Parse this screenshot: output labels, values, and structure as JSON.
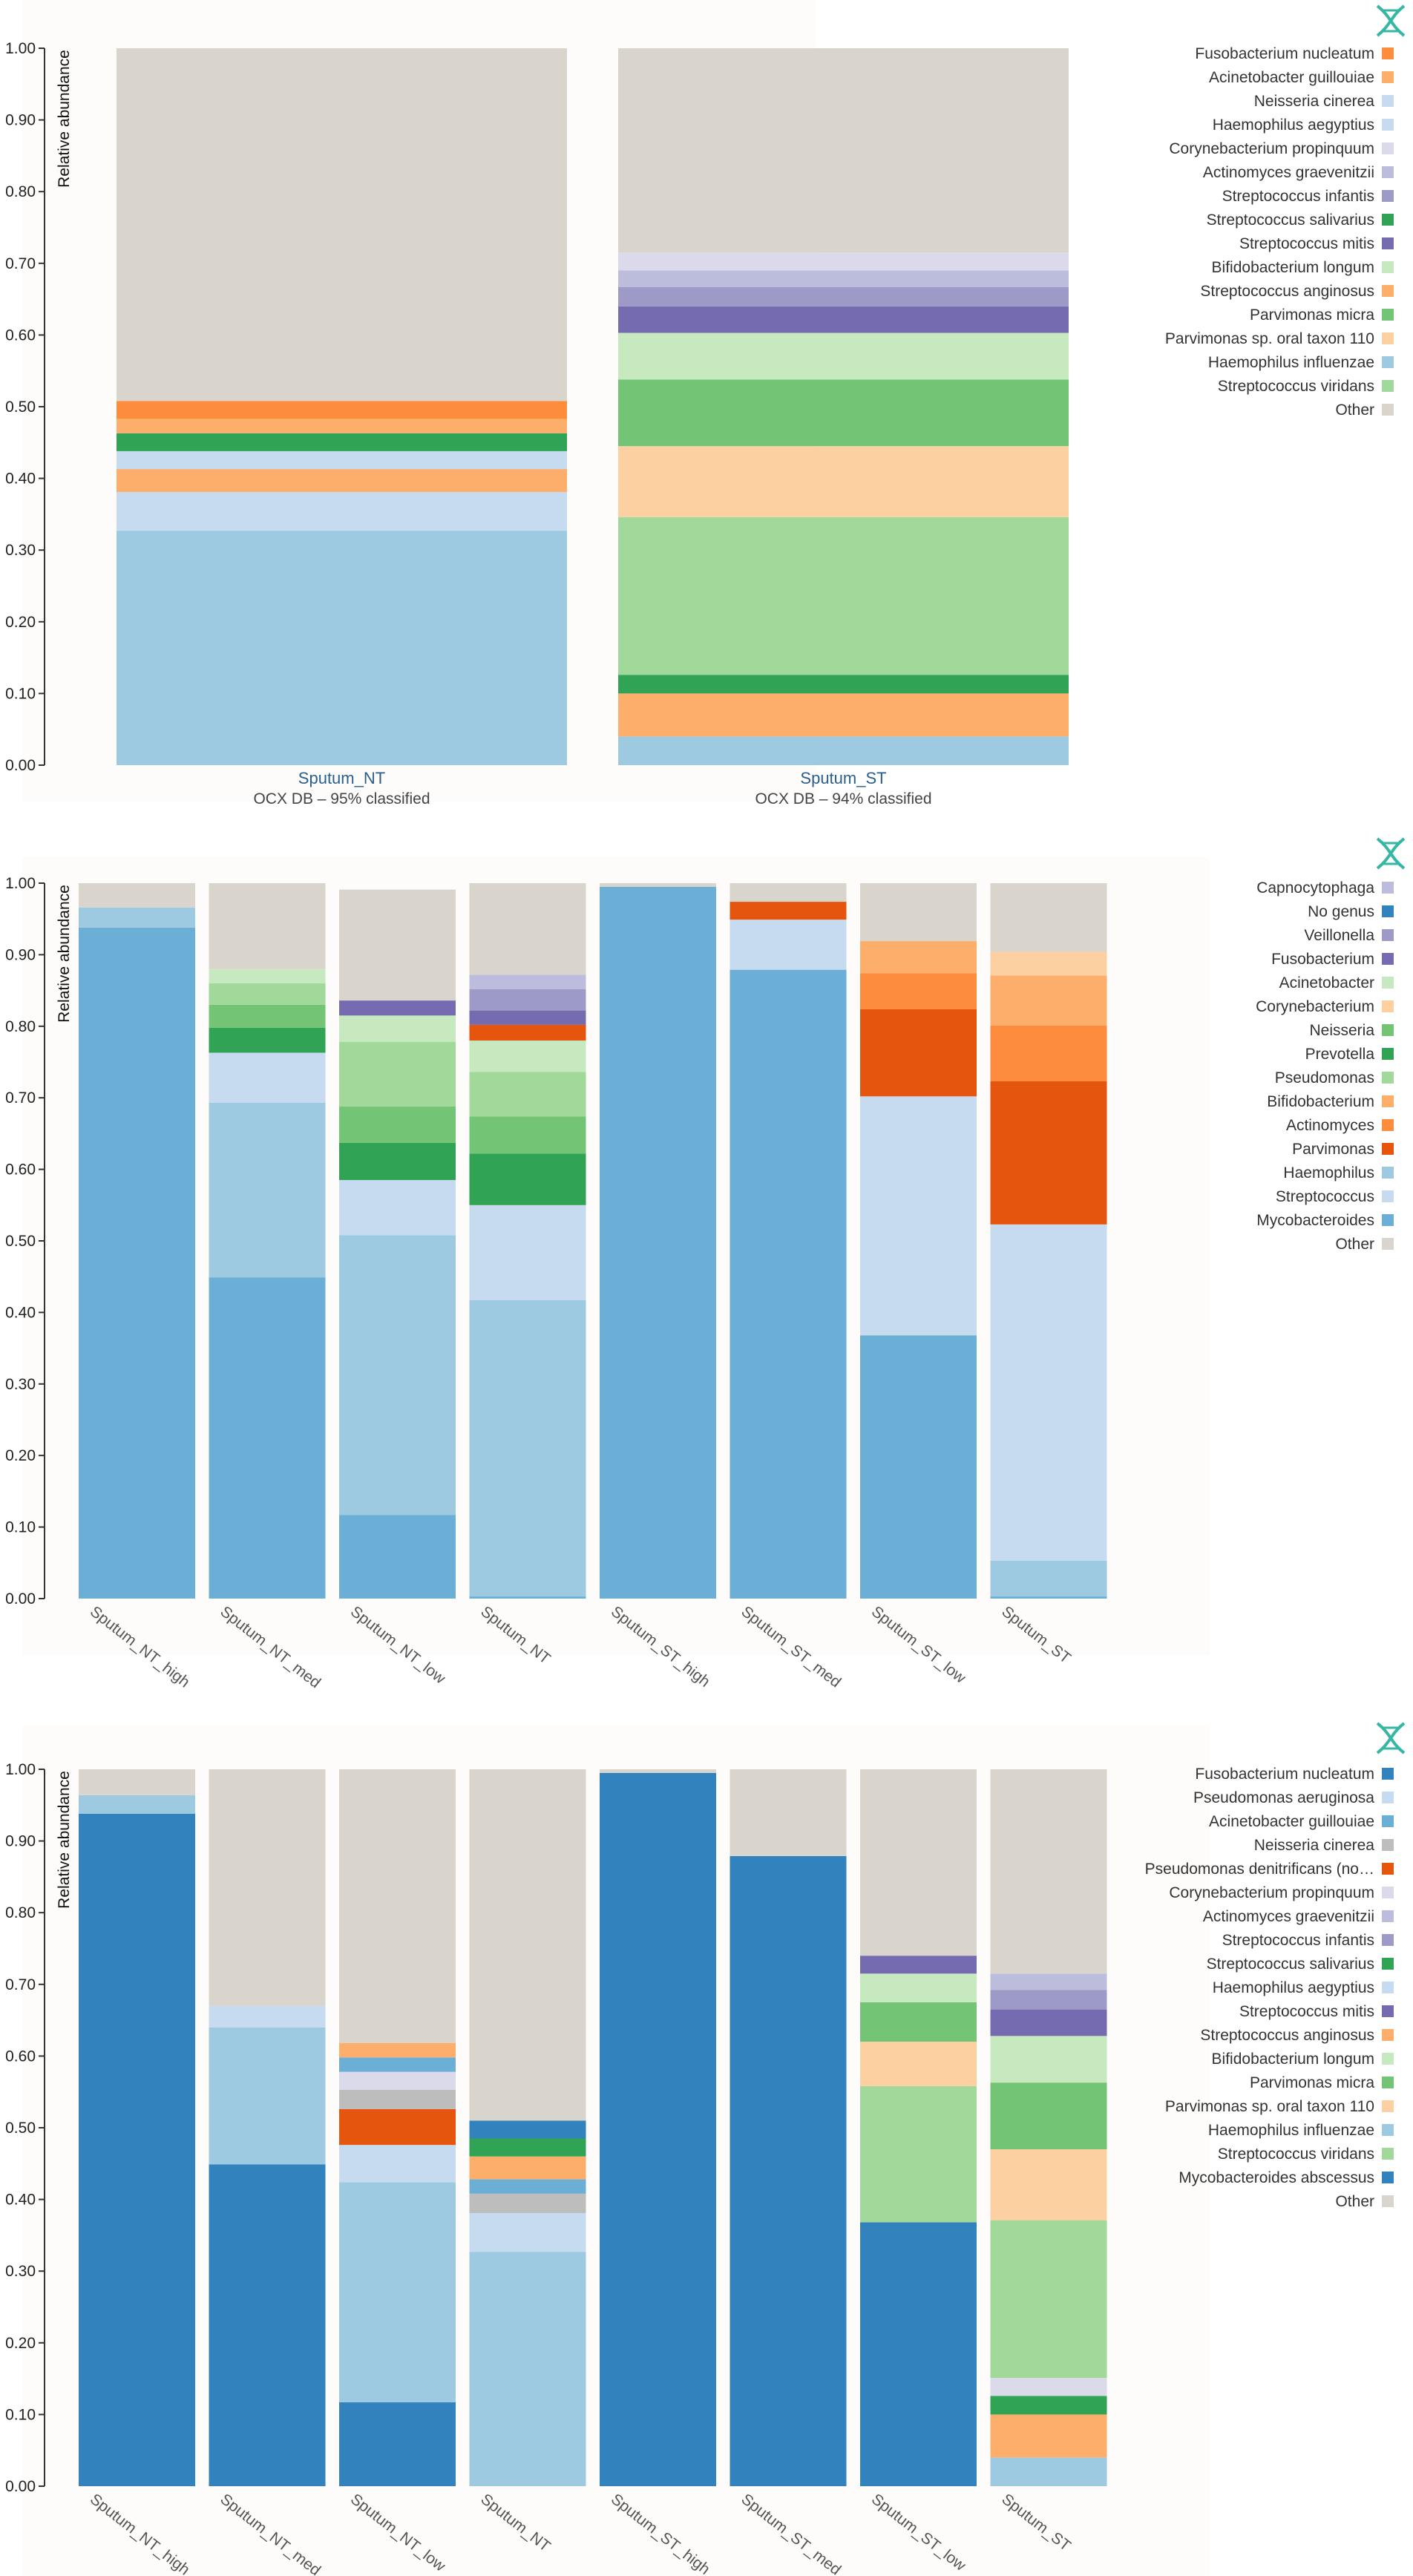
{
  "logo_icon": "dna-helix-icon",
  "chart_data": [
    {
      "type": "bar",
      "stacked": true,
      "title": "",
      "xlabel": "",
      "ylabel": "Relative abundance",
      "ylim": [
        0,
        1
      ],
      "yticks": [
        "0.00",
        "0.10",
        "0.20",
        "0.30",
        "0.40",
        "0.50",
        "0.60",
        "0.70",
        "0.80",
        "0.90",
        "1.00"
      ],
      "categories": [
        "Sputum_NT",
        "Sputum_ST"
      ],
      "category_subtitles": [
        "OCX DB – 95% classified",
        "OCX DB – 94% classified"
      ],
      "legend_placement": "top-right",
      "series": [
        {
          "name": "Haemophilus influenzae",
          "color": "#9ecae1",
          "values": [
            0.327,
            0.04
          ]
        },
        {
          "name": "Streptococcus anginosus",
          "color": "#fdae6b",
          "values": [
            0.0,
            0.06
          ]
        },
        {
          "name": "Streptococcus salivarius",
          "color": "#31a354",
          "values": [
            0.0,
            0.026
          ]
        },
        {
          "name": "Streptococcus viridans",
          "color": "#a1d99b",
          "values": [
            0.0,
            0.22
          ]
        },
        {
          "name": "Parvimonas sp. oral taxon 110",
          "color": "#fdd0a2",
          "values": [
            0.0,
            0.099
          ]
        },
        {
          "name": "Parvimonas micra",
          "color": "#74c476",
          "values": [
            0.0,
            0.093
          ]
        },
        {
          "name": "Bifidobacterium longum",
          "color": "#c7e9c0",
          "values": [
            0.0,
            0.065
          ]
        },
        {
          "name": "Neisseria cinerea",
          "color": "#c6dbef",
          "values": [
            0.054,
            0.0
          ]
        },
        {
          "name": "Acinetobacter guillouiae",
          "color": "#fdae6b",
          "values": [
            0.032,
            0.0
          ]
        },
        {
          "name": "Haemophilus aegyptius",
          "color": "#c6dbef",
          "values": [
            0.025,
            0.0
          ]
        },
        {
          "name": "Streptococcus mitis",
          "color": "#756bb1",
          "values": [
            0.0,
            0.037
          ]
        },
        {
          "name": "Streptococcus infantis",
          "color": "#9e9ac8",
          "values": [
            0.0,
            0.027
          ]
        },
        {
          "name": "Actinomyces graevenitzii",
          "color": "#bcbddc",
          "values": [
            0.0,
            0.023
          ]
        },
        {
          "name": "Corynebacterium propinquum",
          "color": "#dadaeb",
          "values": [
            0.0,
            0.025
          ]
        },
        {
          "name": "Streptococcus salivarius ",
          "color": "#31a354",
          "values": [
            0.025,
            0.0
          ]
        },
        {
          "name": "Streptococcus anginosus ",
          "color": "#fdae6b",
          "values": [
            0.02,
            0.0
          ]
        },
        {
          "name": "Fusobacterium nucleatum",
          "color": "#fd8d3c",
          "values": [
            0.025,
            0.0
          ]
        },
        {
          "name": "Other",
          "color": "#d9d5cc",
          "values": [
            0.492,
            0.285
          ]
        }
      ],
      "legend": [
        {
          "label": "Fusobacterium nucleatum",
          "color": "#fd8d3c"
        },
        {
          "label": "Acinetobacter guillouiae",
          "color": "#fdae6b"
        },
        {
          "label": "Neisseria cinerea",
          "color": "#c6dbef"
        },
        {
          "label": "Haemophilus aegyptius",
          "color": "#c6dbef"
        },
        {
          "label": "Corynebacterium propinquum",
          "color": "#dadaeb"
        },
        {
          "label": "Actinomyces graevenitzii",
          "color": "#bcbddc"
        },
        {
          "label": "Streptococcus infantis",
          "color": "#9e9ac8"
        },
        {
          "label": "Streptococcus salivarius",
          "color": "#31a354"
        },
        {
          "label": "Streptococcus mitis",
          "color": "#756bb1"
        },
        {
          "label": "Bifidobacterium longum",
          "color": "#c7e9c0"
        },
        {
          "label": "Streptococcus anginosus",
          "color": "#fdae6b"
        },
        {
          "label": "Parvimonas micra",
          "color": "#74c476"
        },
        {
          "label": "Parvimonas sp. oral taxon 110",
          "color": "#fdd0a2"
        },
        {
          "label": "Haemophilus influenzae",
          "color": "#9ecae1"
        },
        {
          "label": "Streptococcus viridans",
          "color": "#a1d99b"
        },
        {
          "label": "Other",
          "color": "#d9d5cc"
        }
      ]
    },
    {
      "type": "bar",
      "stacked": true,
      "title": "",
      "xlabel": "",
      "ylabel": "Relative abundance",
      "ylim": [
        0,
        1
      ],
      "yticks": [
        "0.00",
        "0.10",
        "0.20",
        "0.30",
        "0.40",
        "0.50",
        "0.60",
        "0.70",
        "0.80",
        "0.90",
        "1.00"
      ],
      "categories": [
        "Sputum_NT_high",
        "Sputum_NT_med",
        "Sputum_NT_low",
        "Sputum_NT",
        "Sputum_ST_high",
        "Sputum_ST_med",
        "Sputum_ST_low",
        "Sputum_ST"
      ],
      "legend_placement": "top-right",
      "series": [
        {
          "name": "Mycobacteroides",
          "color": "#6baed6",
          "values": [
            0.938,
            0.449,
            0.117,
            0.003,
            0.995,
            0.879,
            0.368,
            0.003
          ]
        },
        {
          "name": "Haemophilus",
          "color": "#9ecae1",
          "values": [
            0.028,
            0.244,
            0.391,
            0.414,
            0.0,
            0.0,
            0.0,
            0.05
          ]
        },
        {
          "name": "Streptococcus",
          "color": "#c6dbef",
          "values": [
            0.0,
            0.07,
            0.077,
            0.133,
            0.0,
            0.07,
            0.334,
            0.47
          ]
        },
        {
          "name": "Prevotella",
          "color": "#31a354",
          "values": [
            0.0,
            0.035,
            0.052,
            0.072,
            0.0,
            0.0,
            0.0,
            0.0
          ]
        },
        {
          "name": "Neisseria",
          "color": "#74c476",
          "values": [
            0.0,
            0.032,
            0.051,
            0.052,
            0.0,
            0.0,
            0.0,
            0.0
          ]
        },
        {
          "name": "Pseudomonas",
          "color": "#a1d99b",
          "values": [
            0.0,
            0.03,
            0.09,
            0.062,
            0.0,
            0.0,
            0.0,
            0.0
          ]
        },
        {
          "name": "Acinetobacter",
          "color": "#c7e9c0",
          "values": [
            0.0,
            0.02,
            0.037,
            0.044,
            0.0,
            0.0,
            0.0,
            0.0
          ]
        },
        {
          "name": "Parvimonas",
          "color": "#e6550d",
          "values": [
            0.0,
            0.0,
            0.0,
            0.022,
            0.0,
            0.025,
            0.122,
            0.2
          ]
        },
        {
          "name": "Actinomyces",
          "color": "#fd8d3c",
          "values": [
            0.0,
            0.0,
            0.0,
            0.0,
            0.0,
            0.0,
            0.05,
            0.078
          ]
        },
        {
          "name": "Bifidobacterium",
          "color": "#fdae6b",
          "values": [
            0.0,
            0.0,
            0.0,
            0.0,
            0.0,
            0.0,
            0.045,
            0.07
          ]
        },
        {
          "name": "Corynebacterium",
          "color": "#fdd0a2",
          "values": [
            0.0,
            0.0,
            0.0,
            0.0,
            0.0,
            0.0,
            0.0,
            0.033
          ]
        },
        {
          "name": "Fusobacterium",
          "color": "#756bb1",
          "values": [
            0.0,
            0.0,
            0.021,
            0.02,
            0.0,
            0.0,
            0.0,
            0.0
          ]
        },
        {
          "name": "Veillonella",
          "color": "#9e9ac8",
          "values": [
            0.0,
            0.0,
            0.0,
            0.03,
            0.0,
            0.0,
            0.0,
            0.0
          ]
        },
        {
          "name": "No genus",
          "color": "#3182bd",
          "values": [
            0.0,
            0.0,
            0.0,
            0.0,
            0.0,
            0.0,
            0.0,
            0.0
          ]
        },
        {
          "name": "Capnocytophaga",
          "color": "#bcbddc",
          "values": [
            0.0,
            0.0,
            0.0,
            0.02,
            0.0,
            0.0,
            0.0,
            0.0
          ]
        },
        {
          "name": "Other",
          "color": "#d9d5cc",
          "values": [
            0.034,
            0.12,
            0.155,
            0.128,
            0.005,
            0.026,
            0.081,
            0.096
          ]
        }
      ],
      "legend": [
        {
          "label": "Capnocytophaga",
          "color": "#bcbddc"
        },
        {
          "label": "No genus",
          "color": "#3182bd"
        },
        {
          "label": "Veillonella",
          "color": "#9e9ac8"
        },
        {
          "label": "Fusobacterium",
          "color": "#756bb1"
        },
        {
          "label": "Acinetobacter",
          "color": "#c7e9c0"
        },
        {
          "label": "Corynebacterium",
          "color": "#fdd0a2"
        },
        {
          "label": "Neisseria",
          "color": "#74c476"
        },
        {
          "label": "Prevotella",
          "color": "#31a354"
        },
        {
          "label": "Pseudomonas",
          "color": "#a1d99b"
        },
        {
          "label": "Bifidobacterium",
          "color": "#fdae6b"
        },
        {
          "label": "Actinomyces",
          "color": "#fd8d3c"
        },
        {
          "label": "Parvimonas",
          "color": "#e6550d"
        },
        {
          "label": "Haemophilus",
          "color": "#9ecae1"
        },
        {
          "label": "Streptococcus",
          "color": "#c6dbef"
        },
        {
          "label": "Mycobacteroides",
          "color": "#6baed6"
        },
        {
          "label": "Other",
          "color": "#d9d5cc"
        }
      ]
    },
    {
      "type": "bar",
      "stacked": true,
      "title": "",
      "xlabel": "",
      "ylabel": "Relative abundance",
      "ylim": [
        0,
        1
      ],
      "yticks": [
        "0.00",
        "0.10",
        "0.20",
        "0.30",
        "0.40",
        "0.50",
        "0.60",
        "0.70",
        "0.80",
        "0.90",
        "1.00"
      ],
      "categories": [
        "Sputum_NT_high",
        "Sputum_NT_med",
        "Sputum_NT_low",
        "Sputum_NT",
        "Sputum_ST_high",
        "Sputum_ST_med",
        "Sputum_ST_low",
        "Sputum_ST"
      ],
      "legend_placement": "top-right",
      "series": [
        {
          "name": "Mycobacteroides abscessus",
          "color": "#3182bd",
          "values": [
            0.938,
            0.449,
            0.117,
            0.0,
            0.995,
            0.879,
            0.368,
            0.0
          ]
        },
        {
          "name": "Haemophilus influenzae",
          "color": "#9ecae1",
          "values": [
            0.026,
            0.191,
            0.307,
            0.327,
            0.0,
            0.0,
            0.0,
            0.04
          ]
        },
        {
          "name": "Haemophilus aegyptius",
          "color": "#c6dbef",
          "values": [
            0.0,
            0.03,
            0.052,
            0.054,
            0.0,
            0.0,
            0.0,
            0.0
          ]
        },
        {
          "name": "Neisseria cinerea",
          "color": "#bdbdbd",
          "values": [
            0.0,
            0.0,
            0.0,
            0.027,
            0.0,
            0.0,
            0.0,
            0.0
          ]
        },
        {
          "name": "Acinetobacter guillouiae",
          "color": "#6baed6",
          "values": [
            0.0,
            0.0,
            0.0,
            0.02,
            0.0,
            0.0,
            0.0,
            0.0
          ]
        },
        {
          "name": "Streptococcus anginosus",
          "color": "#fdae6b",
          "values": [
            0.0,
            0.0,
            0.0,
            0.032,
            0.0,
            0.0,
            0.0,
            0.06
          ]
        },
        {
          "name": "Streptococcus salivarius",
          "color": "#31a354",
          "values": [
            0.0,
            0.0,
            0.0,
            0.025,
            0.0,
            0.0,
            0.0,
            0.026
          ]
        },
        {
          "name": "Pseudomonas aeruginosa",
          "color": "#3182bd",
          "values": [
            0.0,
            0.0,
            0.0,
            0.025,
            0.0,
            0.0,
            0.0,
            0.0
          ]
        },
        {
          "name": "Pseudomonas denitrificans (no…",
          "color": "#e6550d",
          "values": [
            0.0,
            0.0,
            0.05,
            0.0,
            0.0,
            0.0,
            0.0,
            0.0
          ]
        },
        {
          "name": "Neisseria cinerea ",
          "color": "#bdbdbd",
          "values": [
            0.0,
            0.0,
            0.027,
            0.0,
            0.0,
            0.0,
            0.0,
            0.0
          ]
        },
        {
          "name": "Corynebacterium propinquum",
          "color": "#dadaeb",
          "values": [
            0.0,
            0.0,
            0.025,
            0.0,
            0.0,
            0.0,
            0.0,
            0.025
          ]
        },
        {
          "name": "Acinetobacter guillouiae ",
          "color": "#6baed6",
          "values": [
            0.0,
            0.0,
            0.02,
            0.0,
            0.0,
            0.0,
            0.0,
            0.0
          ]
        },
        {
          "name": "Streptococcus anginosus ",
          "color": "#fdae6b",
          "values": [
            0.0,
            0.0,
            0.02,
            0.0,
            0.0,
            0.0,
            0.0,
            0.0
          ]
        },
        {
          "name": "Streptococcus viridans",
          "color": "#a1d99b",
          "values": [
            0.0,
            0.0,
            0.0,
            0.0,
            0.0,
            0.0,
            0.19,
            0.22
          ]
        },
        {
          "name": "Parvimonas sp. oral taxon 110",
          "color": "#fdd0a2",
          "values": [
            0.0,
            0.0,
            0.0,
            0.0,
            0.0,
            0.0,
            0.062,
            0.099
          ]
        },
        {
          "name": "Parvimonas micra",
          "color": "#74c476",
          "values": [
            0.0,
            0.0,
            0.0,
            0.0,
            0.0,
            0.0,
            0.055,
            0.093
          ]
        },
        {
          "name": "Bifidobacterium longum",
          "color": "#c7e9c0",
          "values": [
            0.0,
            0.0,
            0.0,
            0.0,
            0.0,
            0.0,
            0.04,
            0.065
          ]
        },
        {
          "name": "Streptococcus mitis",
          "color": "#756bb1",
          "values": [
            0.0,
            0.0,
            0.0,
            0.0,
            0.0,
            0.0,
            0.025,
            0.037
          ]
        },
        {
          "name": "Streptococcus infantis",
          "color": "#9e9ac8",
          "values": [
            0.0,
            0.0,
            0.0,
            0.0,
            0.0,
            0.0,
            0.0,
            0.027
          ]
        },
        {
          "name": "Actinomyces graevenitzii",
          "color": "#bcbddc",
          "values": [
            0.0,
            0.0,
            0.0,
            0.0,
            0.0,
            0.0,
            0.0,
            0.023
          ]
        },
        {
          "name": "Fusobacterium nucleatum",
          "color": "#3182bd",
          "values": [
            0.0,
            0.0,
            0.0,
            0.0,
            0.0,
            0.0,
            0.0,
            0.0
          ]
        },
        {
          "name": "Other",
          "color": "#d9d5cc",
          "values": [
            0.036,
            0.33,
            0.382,
            0.49,
            0.005,
            0.121,
            0.26,
            0.285
          ]
        }
      ],
      "legend": [
        {
          "label": "Fusobacterium nucleatum",
          "color": "#3182bd"
        },
        {
          "label": "Pseudomonas aeruginosa",
          "color": "#c6dbef"
        },
        {
          "label": "Acinetobacter guillouiae",
          "color": "#6baed6"
        },
        {
          "label": "Neisseria cinerea",
          "color": "#bdbdbd"
        },
        {
          "label": "Pseudomonas denitrificans (no…",
          "color": "#e6550d"
        },
        {
          "label": "Corynebacterium propinquum",
          "color": "#dadaeb"
        },
        {
          "label": "Actinomyces graevenitzii",
          "color": "#bcbddc"
        },
        {
          "label": "Streptococcus infantis",
          "color": "#9e9ac8"
        },
        {
          "label": "Streptococcus salivarius",
          "color": "#31a354"
        },
        {
          "label": "Haemophilus aegyptius",
          "color": "#c6dbef"
        },
        {
          "label": "Streptococcus mitis",
          "color": "#756bb1"
        },
        {
          "label": "Streptococcus anginosus",
          "color": "#fdae6b"
        },
        {
          "label": "Bifidobacterium longum",
          "color": "#c7e9c0"
        },
        {
          "label": "Parvimonas micra",
          "color": "#74c476"
        },
        {
          "label": "Parvimonas sp. oral taxon 110",
          "color": "#fdd0a2"
        },
        {
          "label": "Haemophilus influenzae",
          "color": "#9ecae1"
        },
        {
          "label": "Streptococcus viridans",
          "color": "#a1d99b"
        },
        {
          "label": "Mycobacteroides abscessus",
          "color": "#3182bd"
        },
        {
          "label": "Other",
          "color": "#d9d5cc"
        }
      ]
    }
  ]
}
